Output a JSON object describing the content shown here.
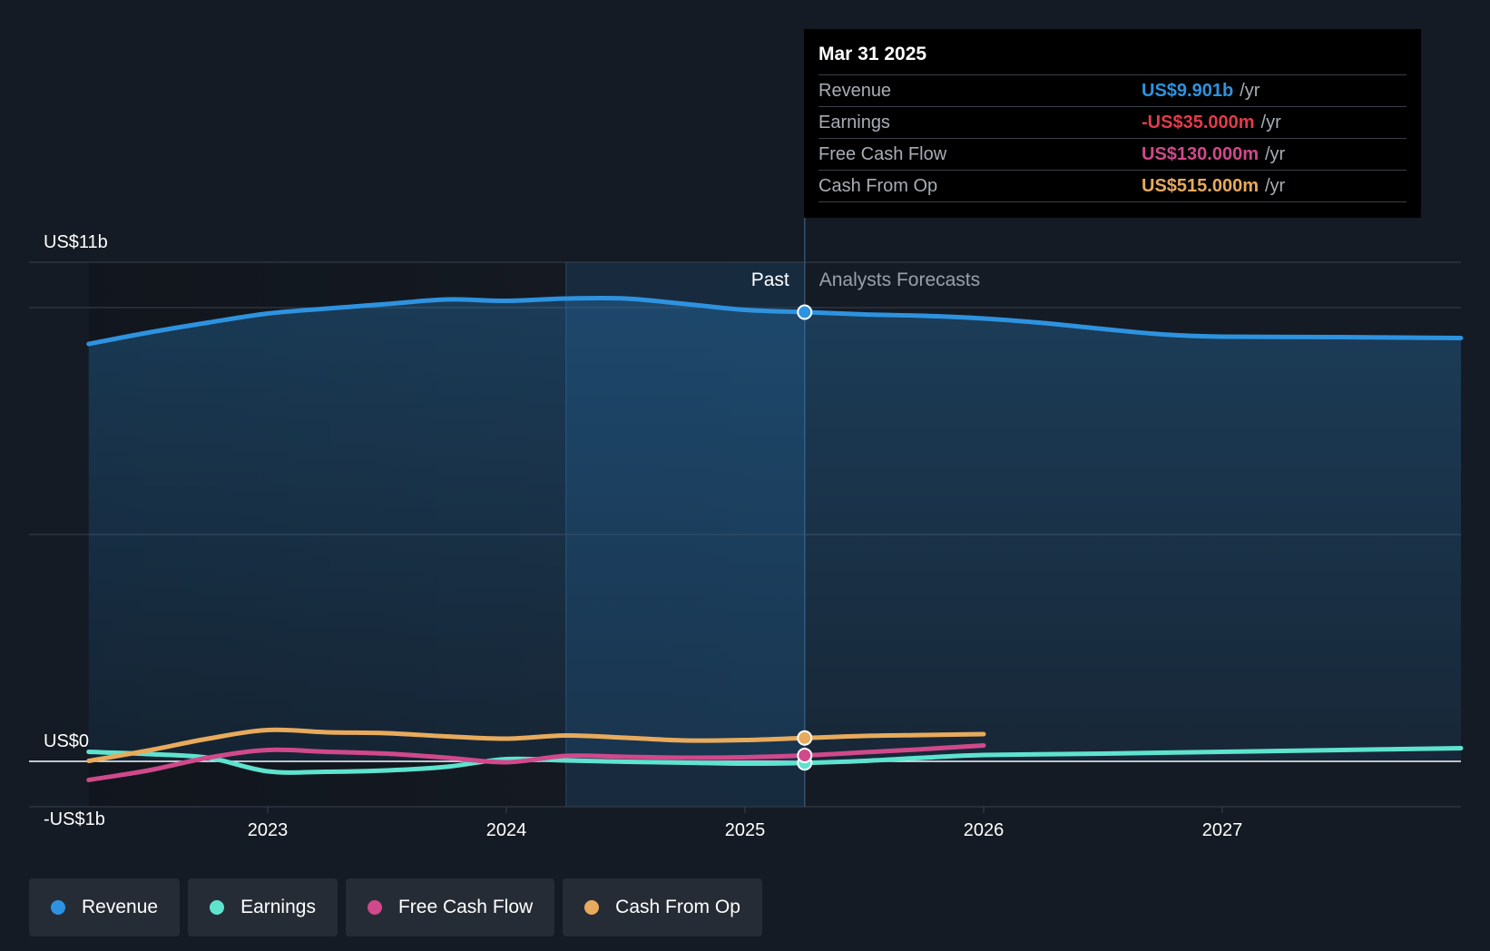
{
  "chart_data": {
    "type": "line",
    "y_axis_labels": [
      "US$11b",
      "US$0",
      "-US$1b"
    ],
    "ylim": [
      -1,
      11
    ],
    "x_ticks": [
      {
        "label": "2023",
        "value": 2023.0
      },
      {
        "label": "2024",
        "value": 2024.0
      },
      {
        "label": "2025",
        "value": 2025.0
      },
      {
        "label": "2026",
        "value": 2026.0
      },
      {
        "label": "2027",
        "value": 2027.0
      }
    ],
    "xlim": [
      2022.0,
      2028.0
    ],
    "past_label": "Past",
    "forecast_label": "Analysts Forecasts",
    "divider_x": 2025.25,
    "highlight_start_x": 2024.25,
    "series": [
      {
        "name": "Revenue",
        "color": "#2d93e0",
        "fill": true,
        "points": [
          [
            2022.25,
            9.2
          ],
          [
            2022.5,
            9.45
          ],
          [
            2022.75,
            9.67
          ],
          [
            2023.0,
            9.87
          ],
          [
            2023.25,
            9.98
          ],
          [
            2023.5,
            10.08
          ],
          [
            2023.75,
            10.18
          ],
          [
            2024.0,
            10.15
          ],
          [
            2024.25,
            10.2
          ],
          [
            2024.5,
            10.2
          ],
          [
            2024.75,
            10.08
          ],
          [
            2025.0,
            9.95
          ],
          [
            2025.25,
            9.901
          ],
          [
            2025.5,
            9.85
          ],
          [
            2025.75,
            9.82
          ],
          [
            2026.0,
            9.76
          ],
          [
            2026.25,
            9.66
          ],
          [
            2026.5,
            9.53
          ],
          [
            2026.75,
            9.41
          ],
          [
            2027.0,
            9.36
          ],
          [
            2027.5,
            9.35
          ],
          [
            2028.0,
            9.33
          ]
        ]
      },
      {
        "name": "Earnings",
        "color": "#5ee3cf",
        "fill": false,
        "points": [
          [
            2022.25,
            0.21
          ],
          [
            2022.5,
            0.16
          ],
          [
            2022.75,
            0.08
          ],
          [
            2023.0,
            -0.22
          ],
          [
            2023.25,
            -0.23
          ],
          [
            2023.5,
            -0.2
          ],
          [
            2023.75,
            -0.12
          ],
          [
            2024.0,
            0.05
          ],
          [
            2024.25,
            0.02
          ],
          [
            2024.5,
            -0.01
          ],
          [
            2024.75,
            -0.03
          ],
          [
            2025.0,
            -0.05
          ],
          [
            2025.25,
            -0.035
          ],
          [
            2025.5,
            0.01
          ],
          [
            2025.75,
            0.08
          ],
          [
            2026.0,
            0.14
          ],
          [
            2026.5,
            0.17
          ],
          [
            2027.0,
            0.21
          ],
          [
            2027.5,
            0.25
          ],
          [
            2028.0,
            0.29
          ]
        ]
      },
      {
        "name": "Free Cash Flow",
        "color": "#d0498b",
        "fill": false,
        "points": [
          [
            2022.25,
            -0.41
          ],
          [
            2022.5,
            -0.2
          ],
          [
            2022.75,
            0.08
          ],
          [
            2023.0,
            0.25
          ],
          [
            2023.25,
            0.21
          ],
          [
            2023.5,
            0.17
          ],
          [
            2023.75,
            0.08
          ],
          [
            2024.0,
            -0.02
          ],
          [
            2024.25,
            0.12
          ],
          [
            2024.5,
            0.1
          ],
          [
            2024.75,
            0.08
          ],
          [
            2025.0,
            0.09
          ],
          [
            2025.25,
            0.13
          ],
          [
            2025.5,
            0.2
          ],
          [
            2025.75,
            0.27
          ],
          [
            2026.0,
            0.35
          ]
        ]
      },
      {
        "name": "Cash From Op",
        "color": "#e8aa5c",
        "fill": false,
        "points": [
          [
            2022.25,
            0.01
          ],
          [
            2022.5,
            0.24
          ],
          [
            2022.75,
            0.5
          ],
          [
            2023.0,
            0.69
          ],
          [
            2023.25,
            0.64
          ],
          [
            2023.5,
            0.62
          ],
          [
            2023.75,
            0.55
          ],
          [
            2024.0,
            0.5
          ],
          [
            2024.25,
            0.57
          ],
          [
            2024.5,
            0.52
          ],
          [
            2024.75,
            0.46
          ],
          [
            2025.0,
            0.47
          ],
          [
            2025.25,
            0.515
          ],
          [
            2025.5,
            0.56
          ],
          [
            2025.75,
            0.58
          ],
          [
            2026.0,
            0.6
          ]
        ]
      }
    ]
  },
  "tooltip": {
    "date": "Mar 31 2025",
    "rows": [
      {
        "label": "Revenue",
        "value": "US$9.901b",
        "unit": "/yr",
        "color": "#2d93e0"
      },
      {
        "label": "Earnings",
        "value": "-US$35.000m",
        "unit": "/yr",
        "color": "#e23b4a"
      },
      {
        "label": "Free Cash Flow",
        "value": "US$130.000m",
        "unit": "/yr",
        "color": "#d0498b"
      },
      {
        "label": "Cash From Op",
        "value": "US$515.000m",
        "unit": "/yr",
        "color": "#e8aa5c"
      }
    ]
  },
  "legend": [
    {
      "label": "Revenue",
      "color": "#2d93e0"
    },
    {
      "label": "Earnings",
      "color": "#5ee3cf"
    },
    {
      "label": "Free Cash Flow",
      "color": "#d0498b"
    },
    {
      "label": "Cash From Op",
      "color": "#e8aa5c"
    }
  ]
}
